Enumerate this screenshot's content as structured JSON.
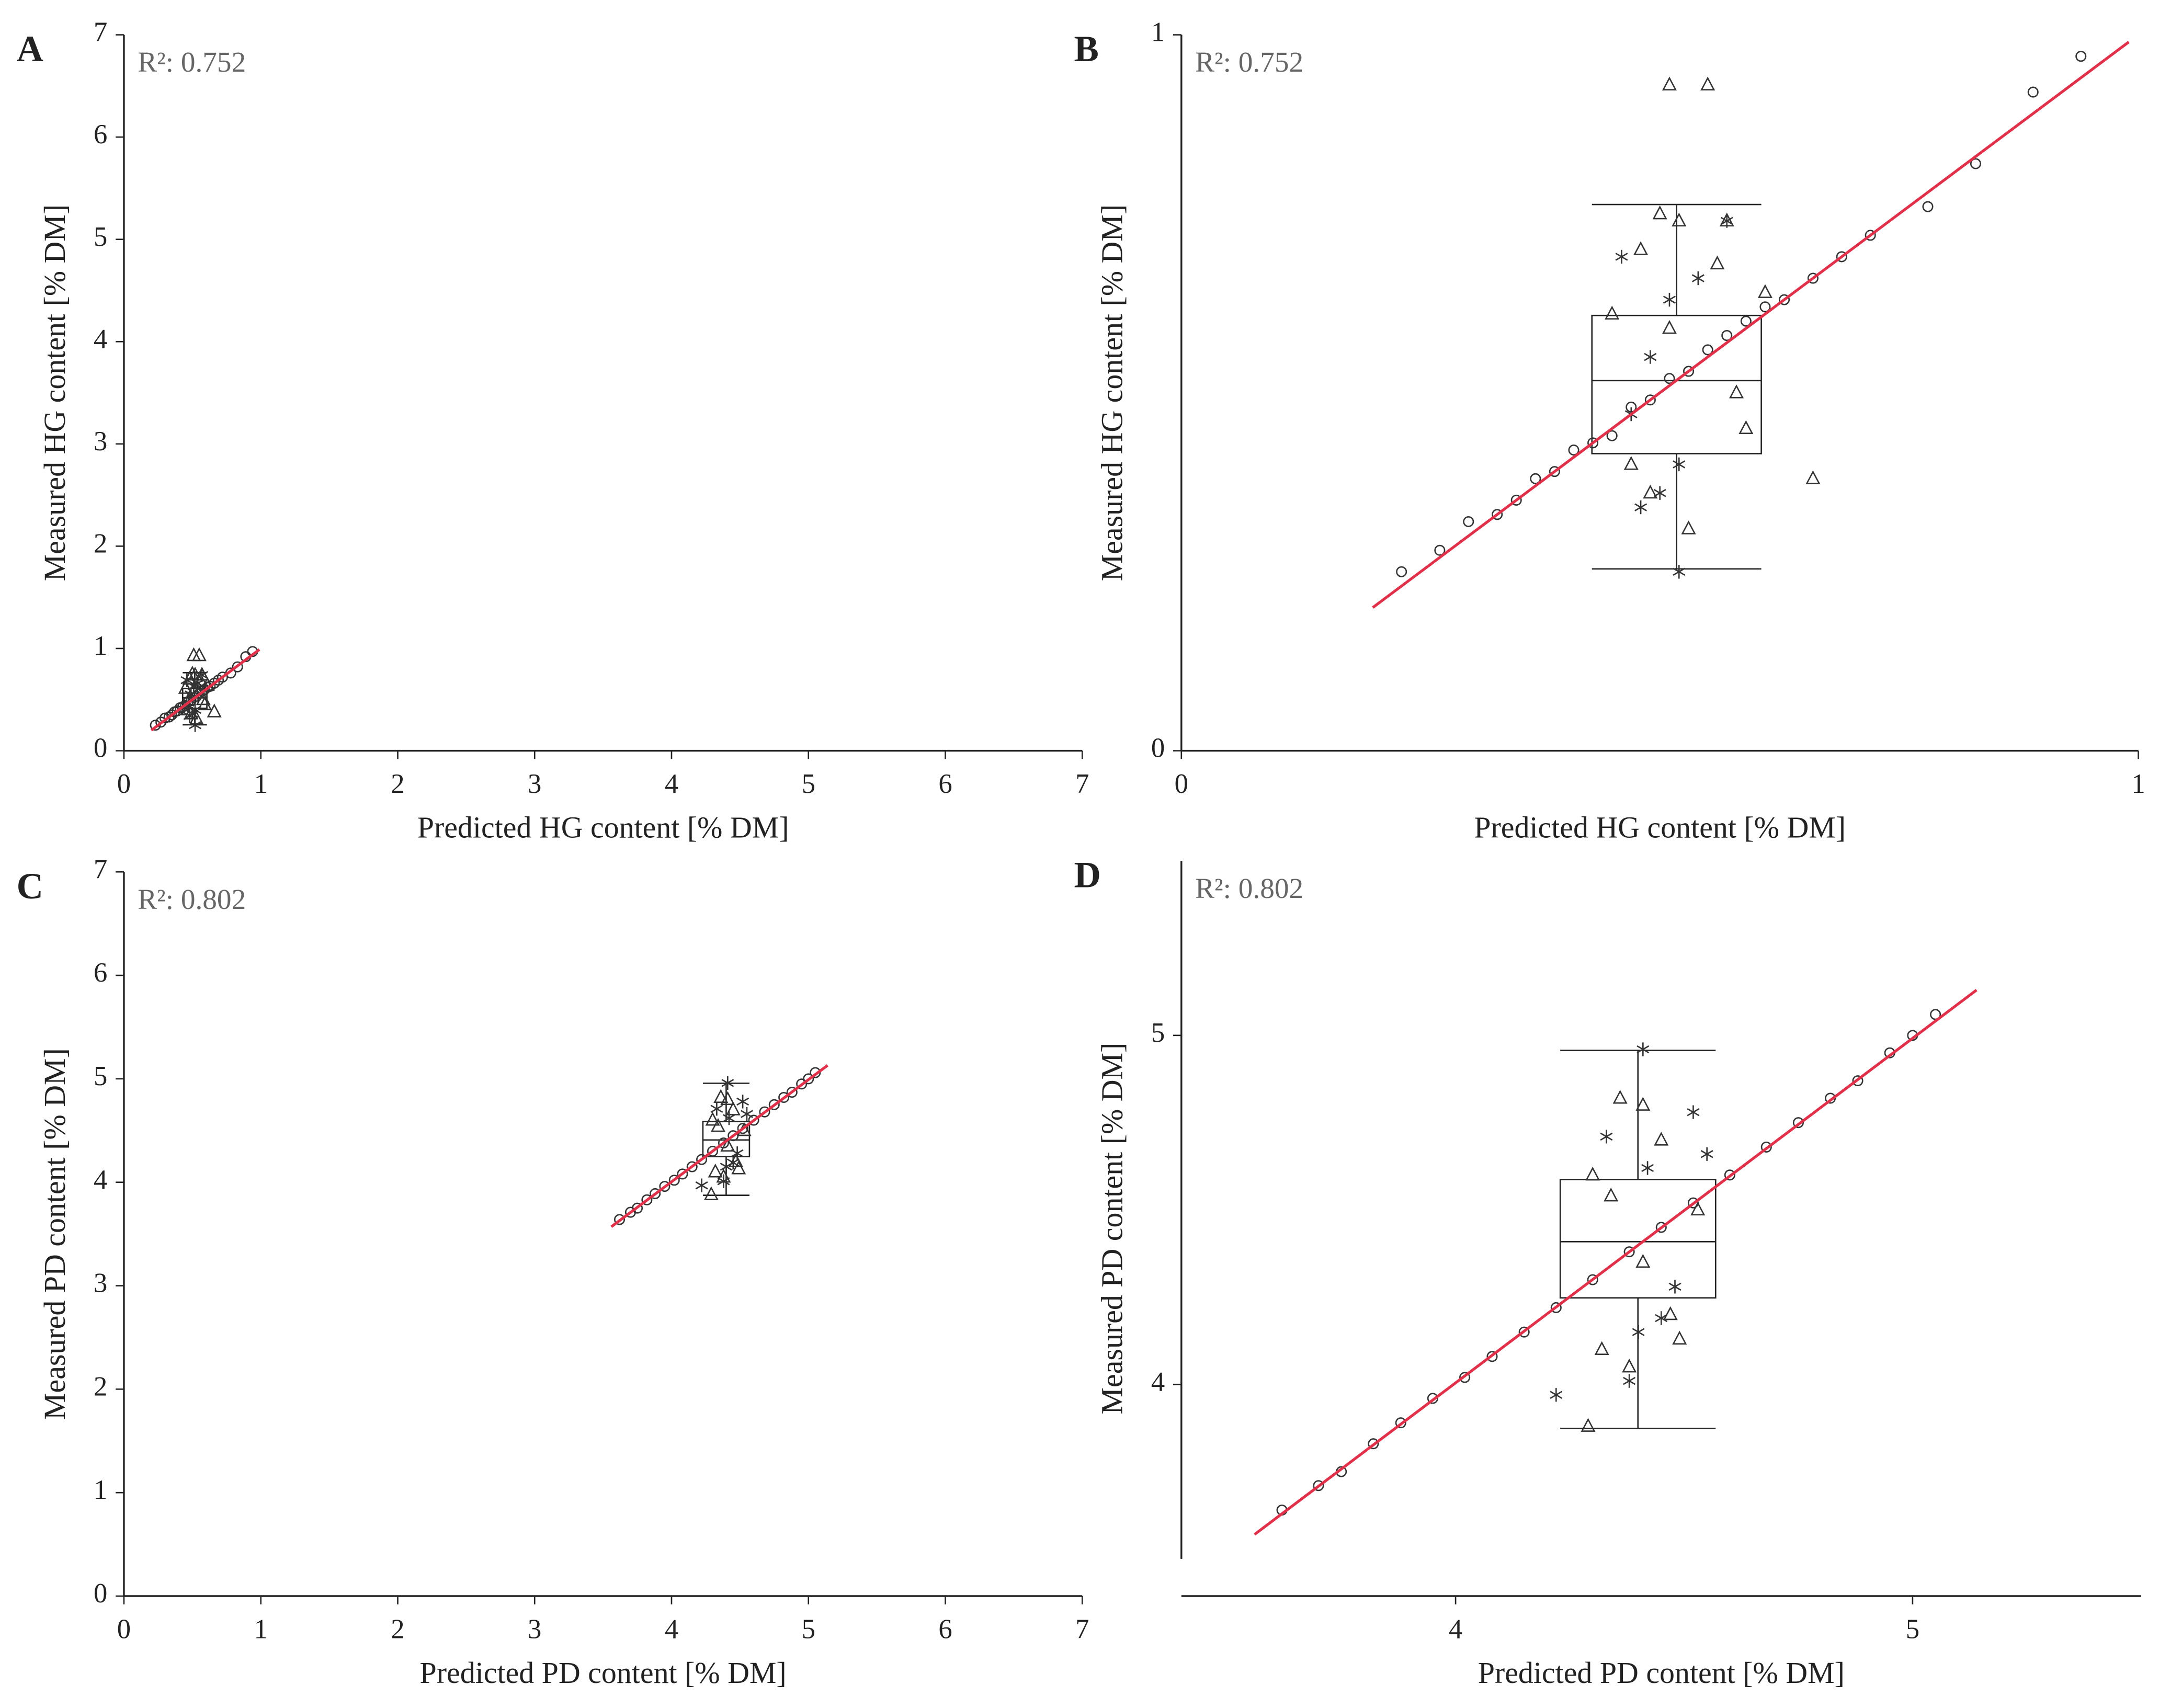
{
  "chart_data": [
    {
      "type": "scatter",
      "panel": "A",
      "annotation": "R²: 0.752",
      "x_label": "Predicted HG content [% DM]",
      "y_label": "Measured HG content [% DM]",
      "xlim": [
        0,
        7
      ],
      "ylim": [
        0,
        7
      ],
      "xticks": [
        0,
        1,
        2,
        3,
        4,
        5,
        6,
        7
      ],
      "yticks": [
        0,
        1,
        2,
        3,
        4,
        5,
        6,
        7
      ],
      "series": [
        {
          "marker": "circle",
          "color": "#333333",
          "x": [
            0.23,
            0.27,
            0.3,
            0.33,
            0.35,
            0.37,
            0.39,
            0.41,
            0.43,
            0.45,
            0.47,
            0.49,
            0.51,
            0.53,
            0.55,
            0.57,
            0.59,
            0.61,
            0.63,
            0.66,
            0.69,
            0.72,
            0.78,
            0.83,
            0.89,
            0.94
          ],
          "values": [
            0.25,
            0.28,
            0.32,
            0.33,
            0.35,
            0.38,
            0.39,
            0.42,
            0.43,
            0.44,
            0.48,
            0.49,
            0.52,
            0.53,
            0.56,
            0.58,
            0.6,
            0.62,
            0.63,
            0.66,
            0.69,
            0.72,
            0.76,
            0.82,
            0.92,
            0.97
          ]
        },
        {
          "marker": "triangle",
          "color": "#333333",
          "x": [
            0.45,
            0.47,
            0.49,
            0.5,
            0.52,
            0.51,
            0.55,
            0.57,
            0.53,
            0.61,
            0.66,
            0.58,
            0.48,
            0.56,
            0.51,
            0.59
          ],
          "values": [
            0.61,
            0.4,
            0.36,
            0.75,
            0.74,
            0.93,
            0.93,
            0.74,
            0.31,
            0.64,
            0.38,
            0.5,
            0.7,
            0.68,
            0.59,
            0.45
          ]
        },
        {
          "marker": "asterisk",
          "color": "#333333",
          "x": [
            0.46,
            0.48,
            0.5,
            0.52,
            0.47,
            0.54,
            0.57,
            0.49,
            0.52,
            0.51
          ],
          "values": [
            0.69,
            0.34,
            0.36,
            0.25,
            0.47,
            0.66,
            0.74,
            0.55,
            0.4,
            0.63
          ]
        }
      ],
      "fit_line": {
        "color": "#e0304a",
        "x": [
          0.2,
          0.99
        ],
        "values": [
          0.2,
          0.99
        ]
      },
      "box": {
        "x_range": [
          0.429,
          0.606
        ],
        "whisker_low": 0.254,
        "q1": 0.415,
        "median": 0.517,
        "q3": 0.608,
        "whisker_high": 0.763
      }
    },
    {
      "type": "scatter",
      "panel": "B",
      "annotation": "R²: 0.752",
      "x_label": "Predicted HG content [% DM]",
      "y_label": "Measured HG content [% DM]",
      "xlim": [
        0,
        1
      ],
      "ylim": [
        0,
        1
      ],
      "xticks": [
        0,
        1
      ],
      "yticks": [
        0,
        1
      ],
      "series": [
        {
          "marker": "circle",
          "color": "#333333",
          "x": [
            0.23,
            0.27,
            0.3,
            0.33,
            0.35,
            0.37,
            0.39,
            0.41,
            0.43,
            0.45,
            0.47,
            0.49,
            0.51,
            0.53,
            0.55,
            0.57,
            0.59,
            0.61,
            0.63,
            0.66,
            0.69,
            0.72,
            0.78,
            0.83,
            0.89,
            0.94
          ],
          "values": [
            0.25,
            0.28,
            0.32,
            0.33,
            0.35,
            0.38,
            0.39,
            0.42,
            0.43,
            0.44,
            0.48,
            0.49,
            0.52,
            0.53,
            0.56,
            0.58,
            0.6,
            0.62,
            0.63,
            0.66,
            0.69,
            0.72,
            0.76,
            0.82,
            0.92,
            0.97
          ]
        },
        {
          "marker": "triangle",
          "color": "#333333",
          "x": [
            0.45,
            0.47,
            0.49,
            0.5,
            0.52,
            0.51,
            0.55,
            0.57,
            0.53,
            0.61,
            0.66,
            0.58,
            0.48,
            0.56,
            0.51,
            0.59
          ],
          "values": [
            0.61,
            0.4,
            0.36,
            0.75,
            0.74,
            0.93,
            0.93,
            0.74,
            0.31,
            0.64,
            0.38,
            0.5,
            0.7,
            0.68,
            0.59,
            0.45
          ]
        },
        {
          "marker": "asterisk",
          "color": "#333333",
          "x": [
            0.46,
            0.48,
            0.5,
            0.52,
            0.47,
            0.54,
            0.57,
            0.49,
            0.52,
            0.51
          ],
          "values": [
            0.69,
            0.34,
            0.36,
            0.25,
            0.47,
            0.66,
            0.74,
            0.55,
            0.4,
            0.63
          ]
        }
      ],
      "fit_line": {
        "color": "#e0304a",
        "x": [
          0.2,
          0.99
        ],
        "values": [
          0.2,
          0.99
        ]
      },
      "box": {
        "x_range": [
          0.429,
          0.606
        ],
        "whisker_low": 0.254,
        "q1": 0.415,
        "median": 0.517,
        "q3": 0.608,
        "whisker_high": 0.763
      }
    },
    {
      "type": "scatter",
      "panel": "C",
      "annotation": "R²: 0.802",
      "x_label": "Predicted PD content [% DM]",
      "y_label": "Measured PD content [% DM]",
      "xlim": [
        0,
        7
      ],
      "ylim": [
        0,
        7
      ],
      "xticks": [
        0,
        1,
        2,
        3,
        4,
        5,
        6,
        7
      ],
      "yticks": [
        0,
        1,
        2,
        3,
        4,
        5,
        6,
        7
      ],
      "series": [
        {
          "marker": "circle",
          "color": "#333333",
          "x": [
            3.62,
            3.7,
            3.75,
            3.82,
            3.88,
            3.95,
            4.02,
            4.08,
            4.15,
            4.22,
            4.3,
            4.38,
            4.45,
            4.52,
            4.6,
            4.68,
            4.75,
            4.82,
            4.88,
            4.95,
            5.0,
            5.05
          ],
          "values": [
            3.64,
            3.71,
            3.75,
            3.83,
            3.89,
            3.96,
            4.02,
            4.08,
            4.15,
            4.22,
            4.3,
            4.38,
            4.45,
            4.52,
            4.6,
            4.68,
            4.75,
            4.82,
            4.87,
            4.95,
            5.0,
            5.06
          ]
        },
        {
          "marker": "triangle",
          "color": "#333333",
          "x": [
            4.29,
            4.32,
            4.36,
            4.41,
            4.45,
            4.49,
            4.53,
            4.38,
            4.3,
            4.47,
            4.41,
            4.34
          ],
          "values": [
            3.88,
            4.1,
            4.82,
            4.8,
            4.7,
            4.13,
            4.5,
            4.05,
            4.6,
            4.2,
            4.35,
            4.54
          ]
        },
        {
          "marker": "asterisk",
          "color": "#333333",
          "x": [
            4.22,
            4.33,
            4.41,
            4.48,
            4.52,
            4.38,
            4.45,
            4.55,
            4.4,
            4.42
          ],
          "values": [
            3.97,
            4.71,
            4.96,
            4.28,
            4.78,
            4.01,
            4.19,
            4.66,
            4.15,
            4.62
          ]
        }
      ],
      "fit_line": {
        "color": "#e0304a",
        "x": [
          3.56,
          5.14
        ],
        "values": [
          3.57,
          5.13
        ]
      },
      "box": {
        "x_range": [
          4.229,
          4.569
        ],
        "whisker_low": 3.874,
        "q1": 4.248,
        "median": 4.409,
        "q3": 4.587,
        "whisker_high": 4.957
      }
    },
    {
      "type": "scatter",
      "panel": "D",
      "annotation": "R²: 0.802",
      "x_label": "Predicted PD content [% DM]",
      "y_label": "Measured PD content [% DM]",
      "xlim": [
        3.4,
        5.5
      ],
      "ylim": [
        3.5,
        5.5
      ],
      "xticks": [
        4,
        5
      ],
      "yticks": [
        4,
        5
      ],
      "series": [
        {
          "marker": "circle",
          "color": "#333333",
          "x": [
            3.62,
            3.7,
            3.75,
            3.82,
            3.88,
            3.95,
            4.02,
            4.08,
            4.15,
            4.22,
            4.3,
            4.38,
            4.45,
            4.52,
            4.6,
            4.68,
            4.75,
            4.82,
            4.88,
            4.95,
            5.0,
            5.05
          ],
          "values": [
            3.64,
            3.71,
            3.75,
            3.83,
            3.89,
            3.96,
            4.02,
            4.08,
            4.15,
            4.22,
            4.3,
            4.38,
            4.45,
            4.52,
            4.6,
            4.68,
            4.75,
            4.82,
            4.87,
            4.95,
            5.0,
            5.06
          ]
        },
        {
          "marker": "triangle",
          "color": "#333333",
          "x": [
            4.29,
            4.32,
            4.36,
            4.41,
            4.45,
            4.49,
            4.53,
            4.38,
            4.3,
            4.47,
            4.41,
            4.34
          ],
          "values": [
            3.88,
            4.1,
            4.82,
            4.8,
            4.7,
            4.13,
            4.5,
            4.05,
            4.6,
            4.2,
            4.35,
            4.54
          ]
        },
        {
          "marker": "asterisk",
          "color": "#333333",
          "x": [
            4.22,
            4.33,
            4.41,
            4.48,
            4.52,
            4.38,
            4.45,
            4.55,
            4.4,
            4.42
          ],
          "values": [
            3.97,
            4.71,
            4.96,
            4.28,
            4.78,
            4.01,
            4.19,
            4.66,
            4.15,
            4.62
          ]
        }
      ],
      "fit_line": {
        "color": "#e0304a",
        "x": [
          3.56,
          5.14
        ],
        "values": [
          3.57,
          5.13
        ]
      },
      "box": {
        "x_range": [
          4.229,
          4.569
        ],
        "whisker_low": 3.874,
        "q1": 4.248,
        "median": 4.409,
        "q3": 4.587,
        "whisker_high": 4.957
      }
    }
  ]
}
